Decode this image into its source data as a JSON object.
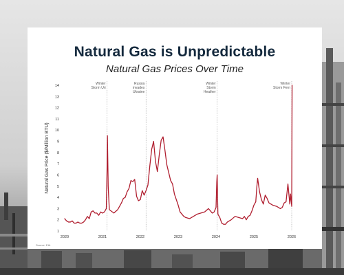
{
  "title": "Natural Gas is Unpredictable",
  "subtitle": "Natural Gas Prices Over Time",
  "source": "Source: EIA",
  "chart_data": {
    "type": "line",
    "title": "Natural Gas is Unpredictable",
    "subtitle": "Natural Gas Prices Over Time",
    "xlabel": "",
    "ylabel": "Natural Gas Price ($/Million BTU)",
    "xlim": [
      2020,
      2026
    ],
    "ylim": [
      1,
      14
    ],
    "x_ticks": [
      "2020",
      "2021",
      "2022",
      "2023",
      "2024",
      "2025",
      "2026"
    ],
    "y_ticks": [
      "1",
      "2",
      "3",
      "4",
      "5",
      "6",
      "7",
      "8",
      "9",
      "10",
      "11",
      "12",
      "13",
      "14"
    ],
    "grid": false,
    "line_color": "#b01e2f",
    "series": [
      {
        "name": "",
        "x": [
          2020.0,
          2020.05,
          2020.1,
          2020.15,
          2020.2,
          2020.25,
          2020.3,
          2020.35,
          2020.4,
          2020.45,
          2020.5,
          2020.55,
          2020.6,
          2020.65,
          2020.7,
          2020.75,
          2020.8,
          2020.85,
          2020.9,
          2020.95,
          2021.0,
          2021.05,
          2021.1,
          2021.12,
          2021.13,
          2021.15,
          2021.18,
          2021.22,
          2021.3,
          2021.4,
          2021.5,
          2021.55,
          2021.6,
          2021.65,
          2021.7,
          2021.75,
          2021.8,
          2021.85,
          2021.9,
          2021.95,
          2022.0,
          2022.05,
          2022.1,
          2022.15,
          2022.2,
          2022.25,
          2022.3,
          2022.35,
          2022.4,
          2022.45,
          2022.5,
          2022.55,
          2022.6,
          2022.65,
          2022.7,
          2022.75,
          2022.8,
          2022.85,
          2022.9,
          2022.95,
          2023.0,
          2023.05,
          2023.1,
          2023.15,
          2023.2,
          2023.3,
          2023.4,
          2023.5,
          2023.6,
          2023.7,
          2023.8,
          2023.9,
          2023.95,
          2024.0,
          2024.02,
          2024.03,
          2024.05,
          2024.1,
          2024.15,
          2024.2,
          2024.25,
          2024.3,
          2024.4,
          2024.5,
          2024.6,
          2024.7,
          2024.75,
          2024.8,
          2024.85,
          2024.9,
          2024.95,
          2025.0,
          2025.05,
          2025.08,
          2025.1,
          2025.15,
          2025.2,
          2025.25,
          2025.3,
          2025.35,
          2025.4,
          2025.5,
          2025.6,
          2025.7,
          2025.75,
          2025.8,
          2025.85,
          2025.9,
          2025.95,
          2025.97,
          2026.0,
          2026.01
        ],
        "y": [
          2.1,
          1.9,
          1.8,
          1.8,
          1.9,
          1.7,
          1.7,
          1.8,
          1.7,
          1.7,
          1.8,
          2.0,
          2.3,
          2.1,
          2.7,
          2.8,
          2.6,
          2.6,
          2.4,
          2.7,
          2.6,
          2.7,
          3.0,
          6.5,
          9.5,
          5.0,
          2.9,
          2.8,
          2.6,
          2.9,
          3.5,
          3.9,
          4.0,
          4.5,
          4.8,
          5.5,
          5.4,
          5.6,
          4.1,
          3.7,
          3.8,
          4.6,
          4.2,
          4.6,
          5.1,
          6.8,
          8.3,
          9.0,
          7.2,
          6.3,
          7.8,
          9.1,
          9.4,
          8.2,
          6.9,
          6.2,
          5.5,
          5.2,
          4.3,
          3.8,
          3.3,
          2.7,
          2.5,
          2.3,
          2.2,
          2.1,
          2.3,
          2.5,
          2.6,
          2.7,
          3.0,
          2.6,
          2.7,
          3.1,
          5.4,
          6.0,
          2.5,
          2.2,
          1.7,
          1.6,
          1.6,
          1.8,
          2.0,
          2.3,
          2.2,
          2.1,
          2.3,
          2.0,
          2.3,
          2.4,
          2.8,
          3.3,
          3.6,
          5.0,
          5.7,
          4.5,
          3.8,
          3.4,
          4.2,
          3.9,
          3.5,
          3.3,
          3.2,
          3.0,
          3.1,
          3.5,
          3.6,
          5.2,
          3.4,
          4.3,
          3.2,
          14.0
        ]
      }
    ],
    "annotations": [
      {
        "x": 2021.12,
        "lines": [
          "Winter",
          "Storm Uri"
        ]
      },
      {
        "x": 2022.15,
        "lines": [
          "Russia",
          "invades",
          "Ukraine"
        ]
      },
      {
        "x": 2024.03,
        "lines": [
          "Winter",
          "Storm",
          "Heather"
        ]
      },
      {
        "x": 2026.0,
        "lines": [
          "Winter",
          "Storm Fern"
        ]
      }
    ]
  }
}
